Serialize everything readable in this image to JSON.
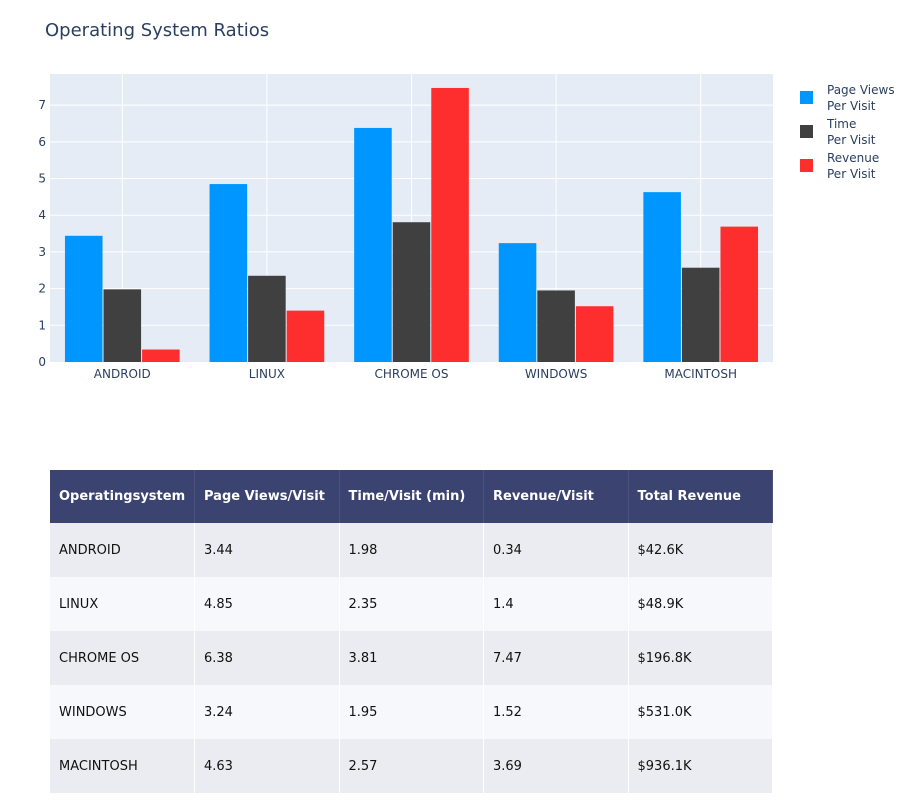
{
  "chart_data": {
    "type": "bar",
    "title": "Operating System Ratios",
    "categories": [
      "ANDROID",
      "LINUX",
      "CHROME OS",
      "WINDOWS",
      "MACINTOSH"
    ],
    "series": [
      {
        "name": "Page Views Per Visit",
        "name_lines": [
          "Page Views",
          "Per Visit"
        ],
        "color": "#0096ff",
        "values": [
          3.44,
          4.85,
          6.38,
          3.24,
          4.63
        ]
      },
      {
        "name": "Time Per Visit",
        "name_lines": [
          "Time",
          "Per Visit"
        ],
        "color": "#404040",
        "values": [
          1.98,
          2.35,
          3.81,
          1.95,
          2.57
        ]
      },
      {
        "name": "Revenue Per Visit",
        "name_lines": [
          "Revenue",
          "Per Visit"
        ],
        "color": "#ff2e2e",
        "values": [
          0.34,
          1.4,
          7.47,
          1.52,
          3.69
        ]
      }
    ],
    "ylim": [
      0,
      7.85
    ],
    "yticks": [
      0,
      1,
      2,
      3,
      4,
      5,
      6,
      7
    ],
    "xlabel": "",
    "ylabel": "",
    "grid": true,
    "legend": "right",
    "plot_bg": "#e5ecf6"
  },
  "table": {
    "headers": [
      "Operatingsystem",
      "Page Views/Visit",
      "Time/Visit (min)",
      "Revenue/Visit",
      "Total Revenue"
    ],
    "rows": [
      [
        "ANDROID",
        "3.44",
        "1.98",
        "0.34",
        "$42.6K"
      ],
      [
        "LINUX",
        "4.85",
        "2.35",
        "1.4",
        "$48.9K"
      ],
      [
        "CHROME OS",
        "6.38",
        "3.81",
        "7.47",
        "$196.8K"
      ],
      [
        "WINDOWS",
        "3.24",
        "1.95",
        "1.52",
        "$531.0K"
      ],
      [
        "MACINTOSH",
        "4.63",
        "2.57",
        "3.69",
        "$936.1K"
      ]
    ]
  }
}
